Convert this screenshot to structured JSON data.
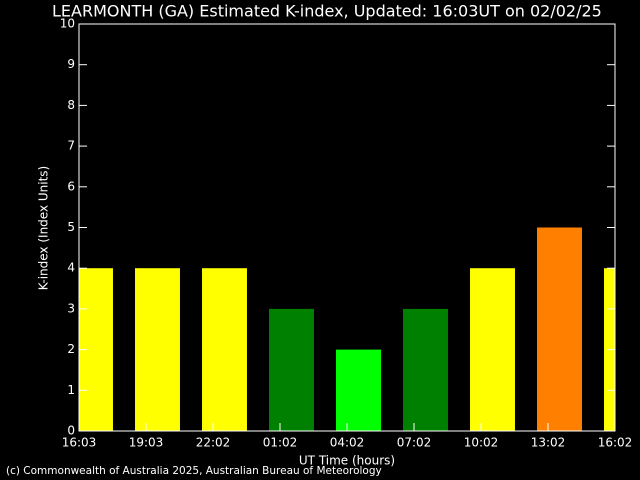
{
  "chart_data": {
    "type": "bar",
    "title": "LEARMONTH (GA) Estimated K-index, Updated: 16:03UT on 02/02/25",
    "x_label": "UT Time (hours)",
    "y_label": "K-index (Index Units)",
    "credit": "(c) Commonwealth of Australia 2025, Australian Bureau of Meteorology",
    "x_tick_labels": [
      "16:03",
      "19:03",
      "22:02",
      "01:02",
      "04:02",
      "07:02",
      "10:02",
      "13:02",
      "16:02"
    ],
    "values": [
      4,
      4,
      4,
      3,
      2,
      3,
      4,
      5,
      4
    ],
    "colors": [
      "#ffff00",
      "#ffff00",
      "#ffff00",
      "#008000",
      "#00ff00",
      "#008000",
      "#ffff00",
      "#ff8000",
      "#ffff00"
    ],
    "ylim": [
      0,
      10
    ],
    "yticks": [
      0,
      1,
      2,
      3,
      4,
      5,
      6,
      7,
      8,
      9,
      10
    ]
  }
}
